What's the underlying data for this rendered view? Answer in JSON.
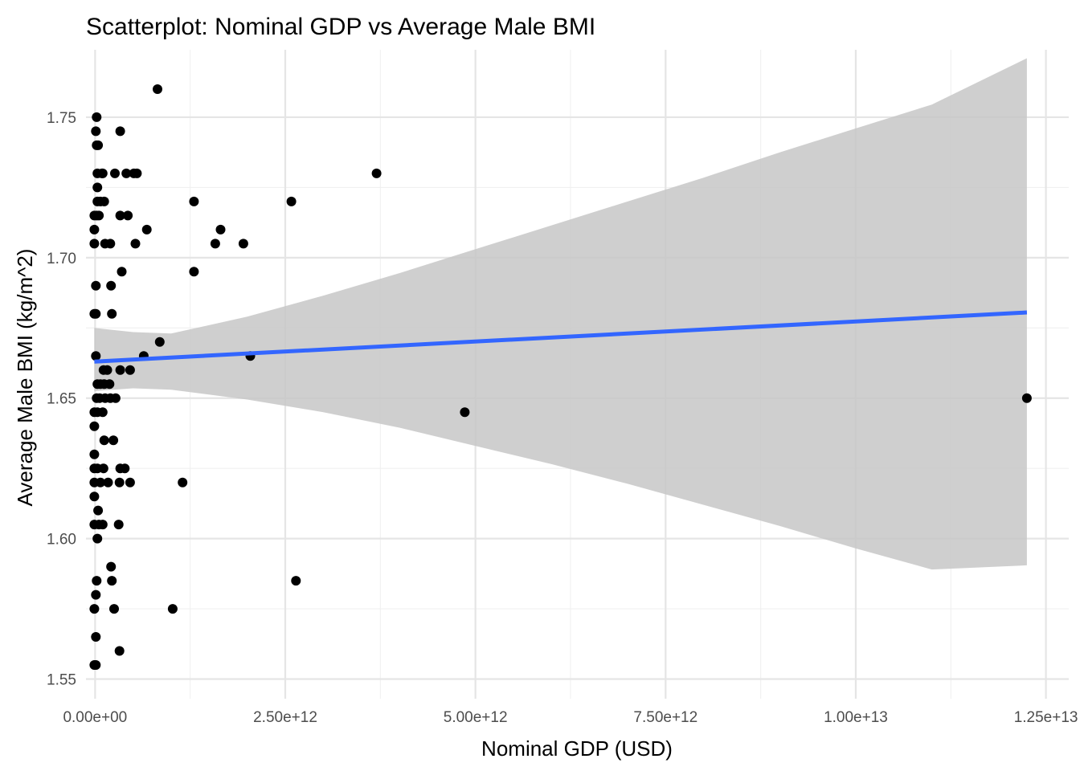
{
  "chart_data": {
    "type": "scatter",
    "title": "Scatterplot: Nominal GDP vs Average Male BMI",
    "xlabel": "Nominal GDP (USD)",
    "ylabel": "Average Male BMI (kg/m^2)",
    "xlim": [
      -120000000000.0,
      12800000000000.0
    ],
    "ylim": [
      1.543,
      1.774
    ],
    "x_ticks": [
      0,
      2500000000000.0,
      5000000000000.0,
      7500000000000.0,
      10000000000000.0,
      12500000000000.0
    ],
    "x_tick_labels": [
      "0.00e+00",
      "2.50e+12",
      "5.00e+12",
      "7.50e+12",
      "1.00e+13",
      "1.25e+13"
    ],
    "x_minor_ticks": [
      1250000000000.0,
      3750000000000.0,
      6250000000000.0,
      8750000000000.0,
      11250000000000.0
    ],
    "y_ticks": [
      1.55,
      1.6,
      1.65,
      1.7,
      1.75
    ],
    "y_tick_labels": [
      "1.55",
      "1.60",
      "1.65",
      "1.70",
      "1.75"
    ],
    "y_minor_ticks": [
      1.575,
      1.625,
      1.675,
      1.725
    ],
    "grid": true,
    "colors": {
      "points": "#000000",
      "fit_line": "#3366FF",
      "confidence_band": "#c7c7c7"
    },
    "points": [
      {
        "x": 820000000000.0,
        "y": 1.76
      },
      {
        "x": 20000000000.0,
        "y": 1.75
      },
      {
        "x": 10000000000.0,
        "y": 1.745
      },
      {
        "x": 330000000000.0,
        "y": 1.745
      },
      {
        "x": 20000000000.0,
        "y": 1.74
      },
      {
        "x": 40000000000.0,
        "y": 1.74
      },
      {
        "x": 30000000000.0,
        "y": 1.73
      },
      {
        "x": 90000000000.0,
        "y": 1.73
      },
      {
        "x": 100000000000.0,
        "y": 1.73
      },
      {
        "x": 260000000000.0,
        "y": 1.73
      },
      {
        "x": 410000000000.0,
        "y": 1.73
      },
      {
        "x": 510000000000.0,
        "y": 1.73
      },
      {
        "x": 550000000000.0,
        "y": 1.73
      },
      {
        "x": 3700000000000.0,
        "y": 1.73
      },
      {
        "x": 30000000000.0,
        "y": 1.725
      },
      {
        "x": 30000000000.0,
        "y": 1.72
      },
      {
        "x": 70000000000.0,
        "y": 1.72
      },
      {
        "x": 120000000000.0,
        "y": 1.72
      },
      {
        "x": 1300000000000.0,
        "y": 1.72
      },
      {
        "x": 2580000000000.0,
        "y": 1.72
      },
      {
        "x": -10000000000.0,
        "y": 1.715
      },
      {
        "x": 20000000000.0,
        "y": 1.715
      },
      {
        "x": 50000000000.0,
        "y": 1.715
      },
      {
        "x": 330000000000.0,
        "y": 1.715
      },
      {
        "x": 430000000000.0,
        "y": 1.715
      },
      {
        "x": -10000000000.0,
        "y": 1.71
      },
      {
        "x": 680000000000.0,
        "y": 1.71
      },
      {
        "x": 1650000000000.0,
        "y": 1.71
      },
      {
        "x": -10000000000.0,
        "y": 1.705
      },
      {
        "x": 130000000000.0,
        "y": 1.705
      },
      {
        "x": 200000000000.0,
        "y": 1.705
      },
      {
        "x": 530000000000.0,
        "y": 1.705
      },
      {
        "x": 1580000000000.0,
        "y": 1.705
      },
      {
        "x": 1950000000000.0,
        "y": 1.705
      },
      {
        "x": 350000000000.0,
        "y": 1.695
      },
      {
        "x": 1300000000000.0,
        "y": 1.695
      },
      {
        "x": 10000000000.0,
        "y": 1.69
      },
      {
        "x": 210000000000.0,
        "y": 1.69
      },
      {
        "x": -10000000000.0,
        "y": 1.68
      },
      {
        "x": 10000000000.0,
        "y": 1.68
      },
      {
        "x": 220000000000.0,
        "y": 1.68
      },
      {
        "x": 850000000000.0,
        "y": 1.67
      },
      {
        "x": 10000000000.0,
        "y": 1.665
      },
      {
        "x": 640000000000.0,
        "y": 1.665
      },
      {
        "x": 2040000000000.0,
        "y": 1.665
      },
      {
        "x": 110000000000.0,
        "y": 1.66
      },
      {
        "x": 160000000000.0,
        "y": 1.66
      },
      {
        "x": 330000000000.0,
        "y": 1.66
      },
      {
        "x": 460000000000.0,
        "y": 1.66
      },
      {
        "x": 30000000000.0,
        "y": 1.655
      },
      {
        "x": 70000000000.0,
        "y": 1.655
      },
      {
        "x": 120000000000.0,
        "y": 1.655
      },
      {
        "x": 190000000000.0,
        "y": 1.655
      },
      {
        "x": 20000000000.0,
        "y": 1.65
      },
      {
        "x": 60000000000.0,
        "y": 1.65
      },
      {
        "x": 130000000000.0,
        "y": 1.65
      },
      {
        "x": 200000000000.0,
        "y": 1.65
      },
      {
        "x": 270000000000.0,
        "y": 1.65
      },
      {
        "x": 12250000000000.0,
        "y": 1.65
      },
      {
        "x": -10000000000.0,
        "y": 1.645
      },
      {
        "x": 30000000000.0,
        "y": 1.645
      },
      {
        "x": 100000000000.0,
        "y": 1.645
      },
      {
        "x": 4860000000000.0,
        "y": 1.645
      },
      {
        "x": -10000000000.0,
        "y": 1.64
      },
      {
        "x": 120000000000.0,
        "y": 1.635
      },
      {
        "x": 240000000000.0,
        "y": 1.635
      },
      {
        "x": -10000000000.0,
        "y": 1.63
      },
      {
        "x": -10000000000.0,
        "y": 1.625
      },
      {
        "x": 30000000000.0,
        "y": 1.625
      },
      {
        "x": 110000000000.0,
        "y": 1.625
      },
      {
        "x": 330000000000.0,
        "y": 1.625
      },
      {
        "x": 390000000000.0,
        "y": 1.625
      },
      {
        "x": -10000000000.0,
        "y": 1.62
      },
      {
        "x": 70000000000.0,
        "y": 1.62
      },
      {
        "x": 170000000000.0,
        "y": 1.62
      },
      {
        "x": 320000000000.0,
        "y": 1.62
      },
      {
        "x": 460000000000.0,
        "y": 1.62
      },
      {
        "x": 1150000000000.0,
        "y": 1.62
      },
      {
        "x": -10000000000.0,
        "y": 1.615
      },
      {
        "x": 40000000000.0,
        "y": 1.61
      },
      {
        "x": -10000000000.0,
        "y": 1.605
      },
      {
        "x": 50000000000.0,
        "y": 1.605
      },
      {
        "x": 100000000000.0,
        "y": 1.605
      },
      {
        "x": 310000000000.0,
        "y": 1.605
      },
      {
        "x": 30000000000.0,
        "y": 1.6
      },
      {
        "x": 210000000000.0,
        "y": 1.59
      },
      {
        "x": 20000000000.0,
        "y": 1.585
      },
      {
        "x": 220000000000.0,
        "y": 1.585
      },
      {
        "x": 2640000000000.0,
        "y": 1.585
      },
      {
        "x": 10000000000.0,
        "y": 1.58
      },
      {
        "x": -10000000000.0,
        "y": 1.575
      },
      {
        "x": 250000000000.0,
        "y": 1.575
      },
      {
        "x": 1020000000000.0,
        "y": 1.575
      },
      {
        "x": 10000000000.0,
        "y": 1.565
      },
      {
        "x": 320000000000.0,
        "y": 1.56
      },
      {
        "x": -10000000000.0,
        "y": 1.555
      },
      {
        "x": 10000000000.0,
        "y": 1.555
      }
    ],
    "fit_line": {
      "x": [
        -10000000000.0,
        12250000000000.0
      ],
      "y": [
        1.663,
        1.6805
      ]
    },
    "confidence_band": {
      "x": [
        -10000000000.0,
        500000000000.0,
        1000000000000.0,
        2000000000000.0,
        3000000000000.0,
        4000000000000.0,
        5000000000000.0,
        6000000000000.0,
        7000000000000.0,
        8000000000000.0,
        9000000000000.0,
        10000000000000.0,
        11000000000000.0,
        12250000000000.0
      ],
      "upper": [
        1.675,
        1.6735,
        1.673,
        1.679,
        1.6865,
        1.6945,
        1.703,
        1.7115,
        1.72,
        1.7285,
        1.7375,
        1.746,
        1.7545,
        1.771
      ],
      "lower": [
        1.6525,
        1.6535,
        1.653,
        1.6495,
        1.645,
        1.6395,
        1.633,
        1.6265,
        1.6195,
        1.612,
        1.6045,
        1.5965,
        1.589,
        1.5905
      ]
    }
  }
}
